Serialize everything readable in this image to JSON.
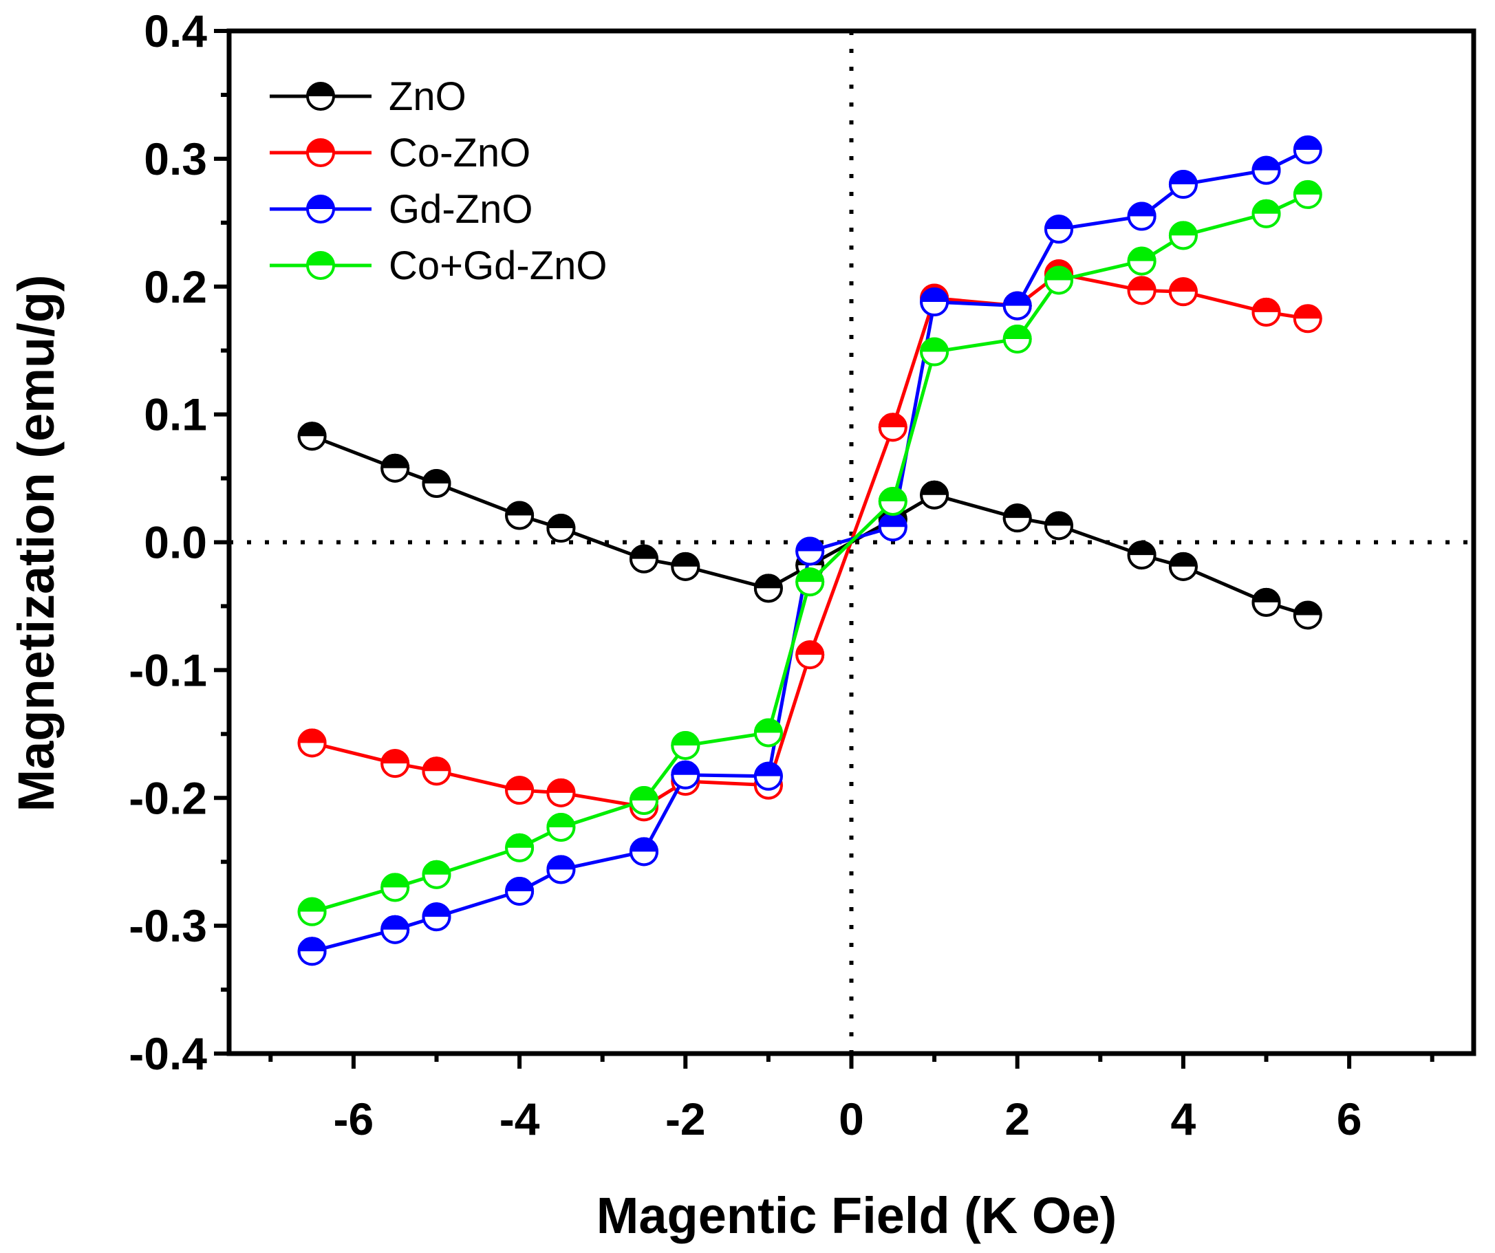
{
  "chart_data": {
    "type": "line",
    "title": "",
    "xlabel": "Magentic Field (K Oe)",
    "ylabel": "Magnetization (emu/g)",
    "xlim": [
      -7.5,
      7.5
    ],
    "ylim": [
      -0.4,
      0.4
    ],
    "xticks": [
      -6,
      -4,
      -2,
      0,
      2,
      4,
      6
    ],
    "xtick_labels": [
      "-6",
      "-4",
      "-2",
      "0",
      "2",
      "4",
      "6"
    ],
    "yticks": [
      -0.4,
      -0.3,
      -0.2,
      -0.1,
      0.0,
      0.1,
      0.2,
      0.3,
      0.4
    ],
    "ytick_labels": [
      "-0.4",
      "-0.3",
      "-0.2",
      "-0.1",
      "0.0",
      "0.1",
      "0.2",
      "0.3",
      "0.4"
    ],
    "grid": false,
    "legend_position": "top-left",
    "reference_lines": [
      "x = 0 (dotted)",
      "y = 0 (dotted)"
    ],
    "series": [
      {
        "name": "ZnO",
        "color": "#000000",
        "x": [
          -6.5,
          -5.5,
          -5.0,
          -4.0,
          -3.5,
          -2.5,
          -2.0,
          -1.0,
          -0.5,
          0.5,
          1.0,
          2.0,
          2.5,
          3.5,
          4.0,
          5.0,
          5.5,
          5.0,
          4.0,
          3.5,
          2.5,
          2.0,
          1.0,
          0.5,
          -0.5,
          -1.0,
          -2.0,
          -2.5,
          -3.5,
          -4.0,
          -5.0,
          -5.5,
          -6.5
        ],
        "y": [
          0.083,
          0.058,
          0.046,
          0.021,
          0.011,
          -0.013,
          -0.019,
          -0.036,
          -0.018,
          0.018,
          0.037,
          0.019,
          0.013,
          -0.01,
          -0.019,
          -0.047,
          -0.057,
          -0.047,
          -0.019,
          -0.01,
          0.013,
          0.019,
          0.037,
          0.018,
          -0.018,
          -0.036,
          -0.019,
          -0.013,
          0.011,
          0.021,
          0.046,
          0.058,
          0.083
        ]
      },
      {
        "name": "Co-ZnO",
        "color": "#ff0000",
        "x": [
          -6.5,
          -5.5,
          -5.0,
          -4.0,
          -3.5,
          -2.5,
          -2.0,
          -1.0,
          -0.5,
          0.5,
          1.0,
          2.0,
          2.5,
          3.5,
          4.0,
          5.0,
          5.5,
          5.0,
          4.0,
          3.5,
          2.5,
          2.0,
          1.0,
          0.5,
          -0.5,
          -1.0,
          -2.0,
          -2.5,
          -3.5,
          -4.0,
          -5.0,
          -5.5,
          -6.5
        ],
        "y": [
          -0.157,
          -0.173,
          -0.179,
          -0.194,
          -0.196,
          -0.207,
          -0.187,
          -0.19,
          -0.088,
          0.09,
          0.191,
          0.185,
          0.21,
          0.197,
          0.196,
          0.18,
          0.175,
          0.18,
          0.196,
          0.197,
          0.21,
          0.185,
          0.191,
          0.09,
          -0.088,
          -0.19,
          -0.187,
          -0.207,
          -0.196,
          -0.194,
          -0.179,
          -0.173,
          -0.157
        ]
      },
      {
        "name": "Gd-ZnO",
        "color": "#0000ff",
        "x": [
          -6.5,
          -5.5,
          -5.0,
          -4.0,
          -3.5,
          -2.5,
          -2.0,
          -1.0,
          -0.5,
          0.5,
          1.0,
          2.0,
          2.5,
          3.5,
          4.0,
          5.0,
          5.5,
          5.0,
          4.0,
          3.5,
          2.5,
          2.0,
          1.0,
          0.5,
          -0.5,
          -1.0,
          -2.0,
          -2.5,
          -3.5,
          -4.0,
          -5.0,
          -5.5,
          -6.5
        ],
        "y": [
          -0.32,
          -0.303,
          -0.293,
          -0.273,
          -0.256,
          -0.242,
          -0.182,
          -0.183,
          -0.007,
          0.012,
          0.188,
          0.185,
          0.245,
          0.255,
          0.28,
          0.291,
          0.307,
          0.291,
          0.28,
          0.255,
          0.245,
          0.185,
          0.188,
          0.012,
          -0.007,
          -0.183,
          -0.182,
          -0.242,
          -0.256,
          -0.273,
          -0.293,
          -0.303,
          -0.32
        ]
      },
      {
        "name": "Co+Gd-ZnO",
        "color": "#00ee00",
        "x": [
          -6.5,
          -5.5,
          -5.0,
          -4.0,
          -3.5,
          -2.5,
          -2.0,
          -1.0,
          -0.5,
          0.5,
          1.0,
          2.0,
          2.5,
          3.5,
          4.0,
          5.0,
          5.5,
          5.0,
          4.0,
          3.5,
          2.5,
          2.0,
          1.0,
          0.5,
          -0.5,
          -1.0,
          -2.0,
          -2.5,
          -3.5,
          -4.0,
          -5.0,
          -5.5,
          -6.5
        ],
        "y": [
          -0.289,
          -0.27,
          -0.26,
          -0.239,
          -0.223,
          -0.202,
          -0.159,
          -0.149,
          -0.031,
          0.032,
          0.149,
          0.159,
          0.205,
          0.22,
          0.24,
          0.257,
          0.272,
          0.257,
          0.24,
          0.22,
          0.205,
          0.159,
          0.149,
          0.032,
          -0.031,
          -0.149,
          -0.159,
          -0.202,
          -0.223,
          -0.239,
          -0.26,
          -0.27,
          -0.289
        ]
      }
    ]
  }
}
